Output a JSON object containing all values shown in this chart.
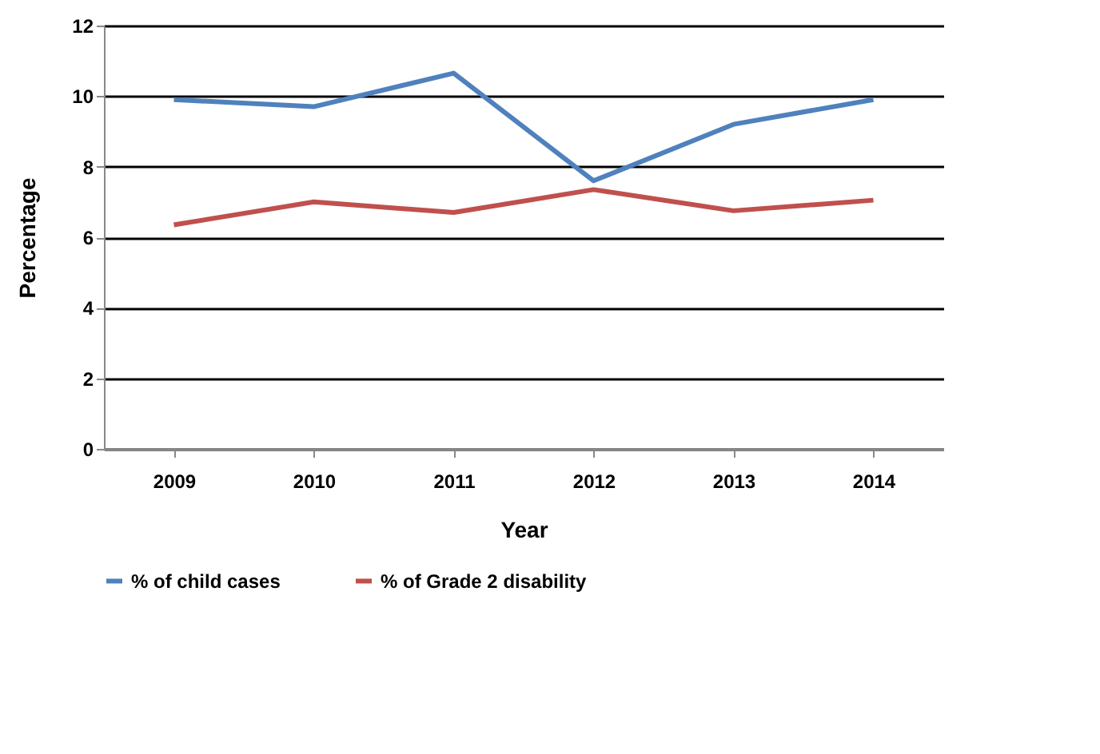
{
  "chart_data": {
    "type": "line",
    "xlabel": "Year",
    "ylabel": "Percentage",
    "categories": [
      "2009",
      "2010",
      "2011",
      "2012",
      "2013",
      "2014"
    ],
    "series": [
      {
        "name": "% of child cases",
        "color": "#4f81bd",
        "values": [
          9.9,
          9.7,
          10.65,
          7.6,
          9.2,
          9.9
        ]
      },
      {
        "name": "% of Grade 2 disability",
        "color": "#c0504d",
        "values": [
          6.35,
          7.0,
          6.7,
          7.35,
          6.75,
          7.05
        ]
      }
    ],
    "ylim": [
      0,
      12
    ],
    "yticks": [
      0,
      2,
      4,
      6,
      8,
      10,
      12
    ],
    "grid": "y",
    "legend": "bottom",
    "marker": "none",
    "line_style": "solid"
  }
}
